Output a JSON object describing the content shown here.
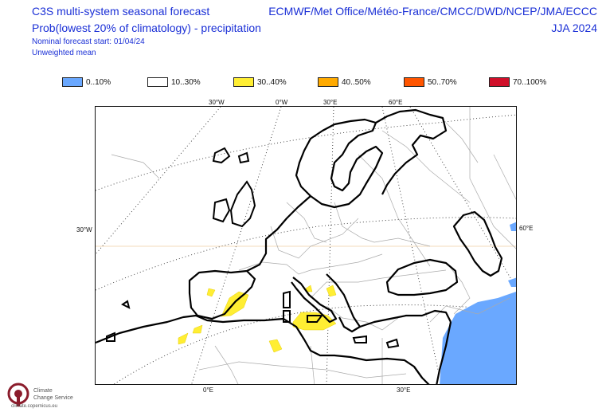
{
  "header": {
    "title_left_1": "C3S multi-system seasonal forecast",
    "title_left_2": "Prob(lowest 20% of climatology) - precipitation",
    "subtitle_1": "Nominal forecast start: 01/04/24",
    "subtitle_2": "Unweighted mean",
    "title_right_1": "ECMWF/Met Office/Météo-France/CMCC/DWD/NCEP/JMA/ECCC",
    "title_right_2": "JJA 2024"
  },
  "legend": [
    {
      "label": "0..10%",
      "color": "#6aa8ff"
    },
    {
      "label": "10..30%",
      "color": "#ffffff"
    },
    {
      "label": "30..40%",
      "color": "#ffee33"
    },
    {
      "label": "40..50%",
      "color": "#ffaa00"
    },
    {
      "label": "50..70%",
      "color": "#ff5500"
    },
    {
      "label": "70..100%",
      "color": "#d0102a"
    }
  ],
  "axis_labels": {
    "top": [
      "30°W",
      "0°W",
      "30°E",
      "60°E"
    ],
    "left": "30°W",
    "right": "60°E",
    "bottom": [
      "0°E",
      "30°E"
    ]
  },
  "logo": {
    "line1": "Climate",
    "line2": "Change Service",
    "url": "climate.copernicus.eu"
  }
}
